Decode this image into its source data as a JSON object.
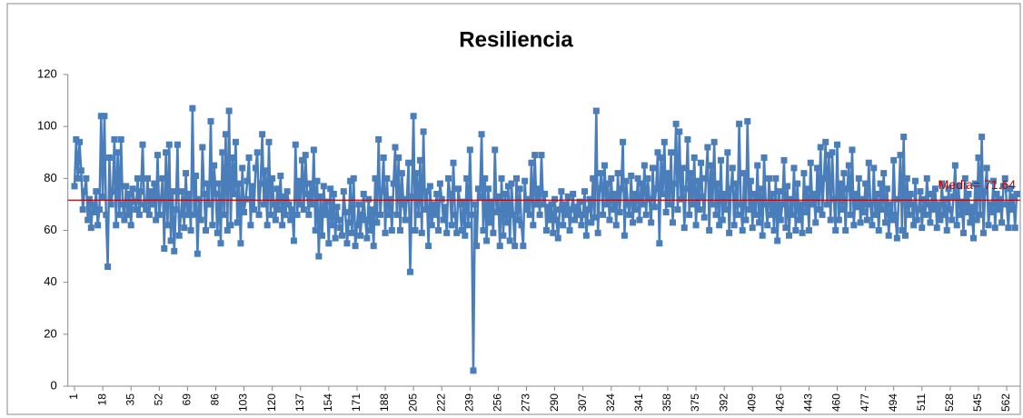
{
  "chart_data": {
    "type": "line",
    "title": "Resiliencia",
    "color": "#4a7ebb",
    "ylim": [
      0,
      120
    ],
    "yticks": [
      0,
      20,
      40,
      60,
      80,
      100,
      120
    ],
    "xlim": [
      -3,
      570
    ],
    "xticks": [
      1,
      18,
      35,
      52,
      69,
      86,
      103,
      120,
      137,
      154,
      171,
      188,
      205,
      222,
      239,
      256,
      273,
      290,
      307,
      324,
      341,
      358,
      375,
      392,
      409,
      426,
      443,
      460,
      477,
      494,
      511,
      528,
      545,
      562
    ],
    "annotation": {
      "text": "Media= 71.64",
      "y": 71.64,
      "color": "#c00000"
    },
    "x": [
      1,
      2,
      3,
      4,
      5,
      6,
      7,
      8,
      9,
      10,
      11,
      12,
      13,
      14,
      15,
      16,
      17,
      18,
      19,
      20,
      21,
      22,
      23,
      24,
      25,
      26,
      27,
      28,
      29,
      30,
      31,
      32,
      33,
      34,
      35,
      36,
      37,
      38,
      39,
      40,
      41,
      42,
      43,
      44,
      45,
      46,
      47,
      48,
      49,
      50,
      51,
      52,
      53,
      54,
      55,
      56,
      57,
      58,
      59,
      60,
      61,
      62,
      63,
      64,
      65,
      66,
      67,
      68,
      69,
      70,
      71,
      72,
      73,
      74,
      75,
      76,
      77,
      78,
      79,
      80,
      81,
      82,
      83,
      84,
      85,
      86,
      87,
      88,
      89,
      90,
      91,
      92,
      93,
      94,
      95,
      96,
      97,
      98,
      99,
      100,
      101,
      102,
      103,
      104,
      105,
      106,
      107,
      108,
      109,
      110,
      111,
      112,
      113,
      114,
      115,
      116,
      117,
      118,
      119,
      120,
      121,
      122,
      123,
      124,
      125,
      126,
      127,
      128,
      129,
      130,
      131,
      132,
      133,
      134,
      135,
      136,
      137,
      138,
      139,
      140,
      141,
      142,
      143,
      144,
      145,
      146,
      147,
      148,
      149,
      150,
      151,
      152,
      153,
      154,
      155,
      156,
      157,
      158,
      159,
      160,
      161,
      162,
      163,
      164,
      165,
      166,
      167,
      168,
      169,
      170,
      171,
      172,
      173,
      174,
      175,
      176,
      177,
      178,
      179,
      180,
      181,
      182,
      183,
      184,
      185,
      186,
      187,
      188,
      189,
      190,
      191,
      192,
      193,
      194,
      195,
      196,
      197,
      198,
      199,
      200,
      201,
      202,
      203,
      204,
      205,
      206,
      207,
      208,
      209,
      210,
      211,
      212,
      213,
      214,
      215,
      216,
      217,
      218,
      219,
      220,
      221,
      222,
      223,
      224,
      225,
      226,
      227,
      228,
      229,
      230,
      231,
      232,
      233,
      234,
      235,
      236,
      237,
      238,
      239,
      240,
      241,
      242,
      243,
      244,
      245,
      246,
      247,
      248,
      249,
      250,
      251,
      252,
      253,
      254,
      255,
      256,
      257,
      258,
      259,
      260,
      261,
      262,
      263,
      264,
      265,
      266,
      267,
      268,
      269,
      270,
      271,
      272,
      273,
      274,
      275,
      276,
      277,
      278,
      279,
      280,
      281,
      282,
      283,
      284,
      285,
      286,
      287,
      288,
      289,
      290,
      291,
      292,
      293,
      294,
      295,
      296,
      297,
      298,
      299,
      300,
      301,
      302,
      303,
      304,
      305,
      306,
      307,
      308,
      309,
      310,
      311,
      312,
      313,
      314,
      315,
      316,
      317,
      318,
      319,
      320,
      321,
      322,
      323,
      324,
      325,
      326,
      327,
      328,
      329,
      330,
      331,
      332,
      333,
      334,
      335,
      336,
      337,
      338,
      339,
      340,
      341,
      342,
      343,
      344,
      345,
      346,
      347,
      348,
      349,
      350,
      351,
      352,
      353,
      354,
      355,
      356,
      357,
      358,
      359,
      360,
      361,
      362,
      363,
      364,
      365,
      366,
      367,
      368,
      369,
      370,
      371,
      372,
      373,
      374,
      375,
      376,
      377,
      378,
      379,
      380,
      381,
      382,
      383,
      384,
      385,
      386,
      387,
      388,
      389,
      390,
      391,
      392,
      393,
      394,
      395,
      396,
      397,
      398,
      399,
      400,
      401,
      402,
      403,
      404,
      405,
      406,
      407,
      408,
      409,
      410,
      411,
      412,
      413,
      414,
      415,
      416,
      417,
      418,
      419,
      420,
      421,
      422,
      423,
      424,
      425,
      426,
      427,
      428,
      429,
      430,
      431,
      432,
      433,
      434,
      435,
      436,
      437,
      438,
      439,
      440,
      441,
      442,
      443,
      444,
      445,
      446,
      447,
      448,
      449,
      450,
      451,
      452,
      453,
      454,
      455,
      456,
      457,
      458,
      459,
      460,
      461,
      462,
      463,
      464,
      465,
      466,
      467,
      468,
      469,
      470,
      471,
      472,
      473,
      474,
      475,
      476,
      477,
      478,
      479,
      480,
      481,
      482,
      483,
      484,
      485,
      486,
      487,
      488,
      489,
      490,
      491,
      492,
      493,
      494,
      495,
      496,
      497,
      498,
      499,
      500,
      501,
      502,
      503,
      504,
      505,
      506,
      507,
      508,
      509,
      510,
      511,
      512,
      513,
      514,
      515,
      516,
      517,
      518,
      519,
      520,
      521,
      522,
      523,
      524,
      525,
      526,
      527,
      528,
      529,
      530,
      531,
      532,
      533,
      534,
      535,
      536,
      537,
      538,
      539,
      540,
      541,
      542,
      543,
      544,
      545,
      546,
      547,
      548,
      549,
      550,
      551,
      552,
      553,
      554,
      555,
      556,
      557,
      558,
      559,
      560,
      561,
      562,
      563,
      564,
      565,
      566,
      567,
      568
    ],
    "values": [
      77,
      95,
      80,
      94,
      83,
      68,
      75,
      80,
      64,
      72,
      61,
      70,
      67,
      75,
      62,
      68,
      104,
      73,
      104,
      66,
      46,
      88,
      70,
      75,
      95,
      62,
      90,
      66,
      95,
      70,
      64,
      77,
      66,
      74,
      62,
      76,
      71,
      68,
      80,
      66,
      75,
      93,
      70,
      68,
      80,
      66,
      75,
      70,
      78,
      64,
      89,
      66,
      72,
      80,
      53,
      90,
      62,
      93,
      56,
      75,
      52,
      68,
      93,
      58,
      66,
      75,
      61,
      82,
      66,
      74,
      60,
      107,
      66,
      81,
      51,
      72,
      64,
      92,
      74,
      60,
      78,
      70,
      102,
      62,
      85,
      74,
      59,
      78,
      55,
      90,
      66,
      97,
      60,
      106,
      62,
      88,
      74,
      94,
      63,
      78,
      55,
      84,
      67,
      72,
      79,
      88,
      62,
      77,
      68,
      84,
      90,
      66,
      78,
      97,
      70,
      83,
      62,
      94,
      66,
      80,
      70,
      64,
      76,
      68,
      81,
      62,
      73,
      66,
      75,
      70,
      64,
      68,
      56,
      93,
      66,
      79,
      70,
      87,
      68,
      89,
      74,
      66,
      78,
      70,
      91,
      60,
      79,
      50,
      73,
      58,
      77,
      66,
      71,
      55,
      76,
      62,
      74,
      57,
      69,
      64,
      61,
      58,
      75,
      67,
      55,
      63,
      79,
      59,
      80,
      54,
      62,
      70,
      58,
      66,
      74,
      64,
      57,
      72,
      60,
      68,
      54,
      80,
      63,
      95,
      66,
      75,
      88,
      59,
      80,
      66,
      72,
      60,
      78,
      92,
      66,
      88,
      60,
      82,
      70,
      64,
      72,
      86,
      44,
      73,
      104,
      60,
      82,
      66,
      87,
      59,
      98,
      68,
      75,
      54,
      77,
      62,
      70,
      66,
      74,
      60,
      78,
      72,
      64,
      69,
      59,
      80,
      74,
      62,
      86,
      66,
      59,
      76,
      70,
      60,
      71,
      58,
      80,
      62,
      91,
      66,
      6,
      70,
      54,
      76,
      73,
      97,
      60,
      80,
      56,
      76,
      63,
      71,
      59,
      91,
      67,
      73,
      54,
      80,
      58,
      74,
      63,
      77,
      56,
      78,
      66,
      54,
      80,
      64,
      76,
      62,
      54,
      79,
      68,
      72,
      66,
      86,
      62,
      89,
      70,
      76,
      66,
      89,
      70,
      74,
      60,
      69,
      64,
      70,
      59,
      72,
      64,
      57,
      68,
      75,
      62,
      70,
      66,
      73,
      60,
      68,
      74,
      64,
      69,
      66,
      71,
      62,
      66,
      75,
      58,
      68,
      72,
      63,
      80,
      65,
      106,
      59,
      76,
      82,
      66,
      85,
      70,
      78,
      64,
      80,
      68,
      74,
      62,
      82,
      67,
      76,
      94,
      58,
      79,
      70,
      66,
      81,
      63,
      74,
      68,
      80,
      64,
      78,
      70,
      85,
      66,
      80,
      72,
      63,
      84,
      69,
      76,
      90,
      55,
      88,
      74,
      94,
      67,
      82,
      70,
      90,
      63,
      78,
      101,
      68,
      98,
      72,
      84,
      61,
      76,
      95,
      66,
      82,
      70,
      88,
      62,
      79,
      68,
      86,
      73,
      65,
      80,
      92,
      60,
      85,
      70,
      94,
      66,
      78,
      62,
      87,
      64,
      74,
      68,
      90,
      59,
      76,
      84,
      62,
      78,
      66,
      101,
      70,
      60,
      82,
      64,
      102,
      68,
      79,
      61,
      74,
      66,
      85,
      63,
      76,
      58,
      88,
      70,
      62,
      80,
      66,
      74,
      60,
      80,
      56,
      75,
      64,
      70,
      87,
      61,
      77,
      58,
      72,
      66,
      84,
      60,
      78,
      64,
      70,
      59,
      82,
      67,
      76,
      60,
      86,
      70,
      74,
      63,
      84,
      68,
      92,
      66,
      80,
      94,
      70,
      89,
      64,
      90,
      72,
      60,
      93,
      64,
      78,
      68,
      82,
      60,
      76,
      85,
      66,
      91,
      62,
      74,
      69,
      80,
      63,
      72,
      67,
      78,
      64,
      86,
      70,
      62,
      84,
      66,
      74,
      60,
      78,
      68,
      82,
      63,
      76,
      58,
      70,
      64,
      87,
      66,
      57,
      72,
      89,
      60,
      96,
      58,
      80,
      66,
      74,
      70,
      62,
      79,
      64,
      68,
      75,
      61,
      72,
      66,
      80,
      70,
      63,
      74,
      68,
      76,
      61,
      70,
      64,
      78,
      66,
      72,
      60,
      76,
      68,
      64,
      73,
      85,
      62,
      77,
      66,
      71,
      59,
      80,
      67,
      74,
      63,
      69,
      57,
      78,
      64,
      88,
      66,
      96,
      59,
      75,
      84,
      62,
      70,
      67,
      79,
      61,
      74,
      68,
      72,
      63,
      77,
      80,
      70,
      61,
      76,
      68,
      73,
      61,
      74
    ]
  }
}
